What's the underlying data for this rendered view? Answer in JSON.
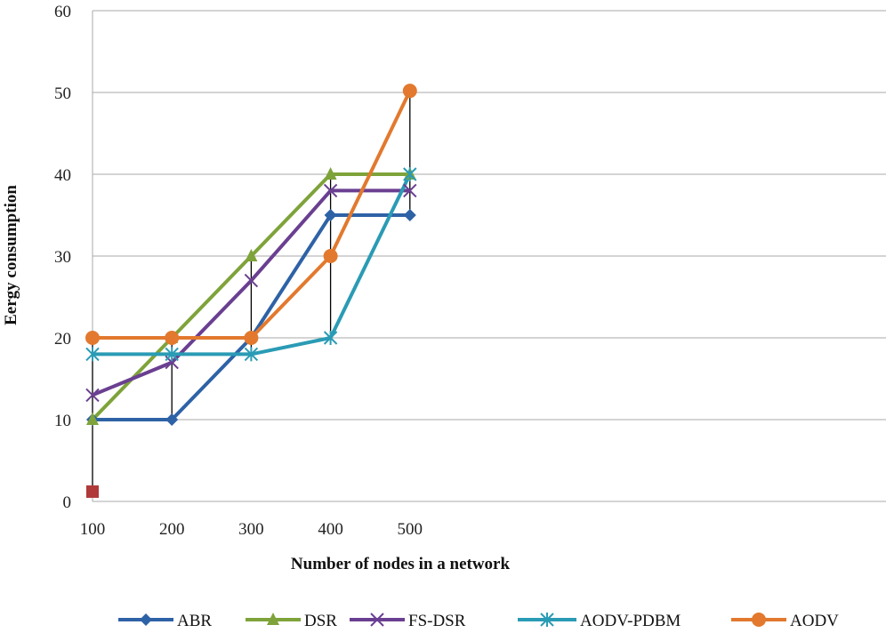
{
  "chart_data": {
    "type": "line",
    "title": "",
    "xlabel": "Number of nodes in a network",
    "ylabel": "Eergy consumption",
    "categories": [
      "100",
      "200",
      "300",
      "400",
      "500"
    ],
    "x": [
      100,
      200,
      300,
      400,
      500
    ],
    "xlim": [
      100,
      1100
    ],
    "ylim": [
      0,
      60
    ],
    "yticks": [
      0,
      10,
      20,
      30,
      40,
      50,
      60
    ],
    "grid": true,
    "legend_position": "bottom",
    "drop_lines": true,
    "extra_point": {
      "x": 100,
      "y": 1.2,
      "color": "#b03a3a",
      "marker": "square"
    },
    "series": [
      {
        "name": "ABR",
        "color": "#2e62a6",
        "marker": "diamond",
        "values": [
          10,
          10,
          20,
          35,
          35
        ]
      },
      {
        "name": "DSR",
        "color": "#7ea33a",
        "marker": "triangle",
        "values": [
          10,
          20,
          30,
          40,
          40
        ]
      },
      {
        "name": "FS-DSR",
        "color": "#6a3f91",
        "marker": "x",
        "values": [
          13,
          17,
          27,
          38,
          38
        ]
      },
      {
        "name": "AODV-PDBM",
        "color": "#2a9bb5",
        "marker": "asterisk",
        "values": [
          18,
          18,
          18,
          20,
          40
        ]
      },
      {
        "name": "AODV",
        "color": "#e2792e",
        "marker": "circle",
        "values": [
          20,
          20,
          20,
          30,
          50.2
        ]
      }
    ]
  }
}
